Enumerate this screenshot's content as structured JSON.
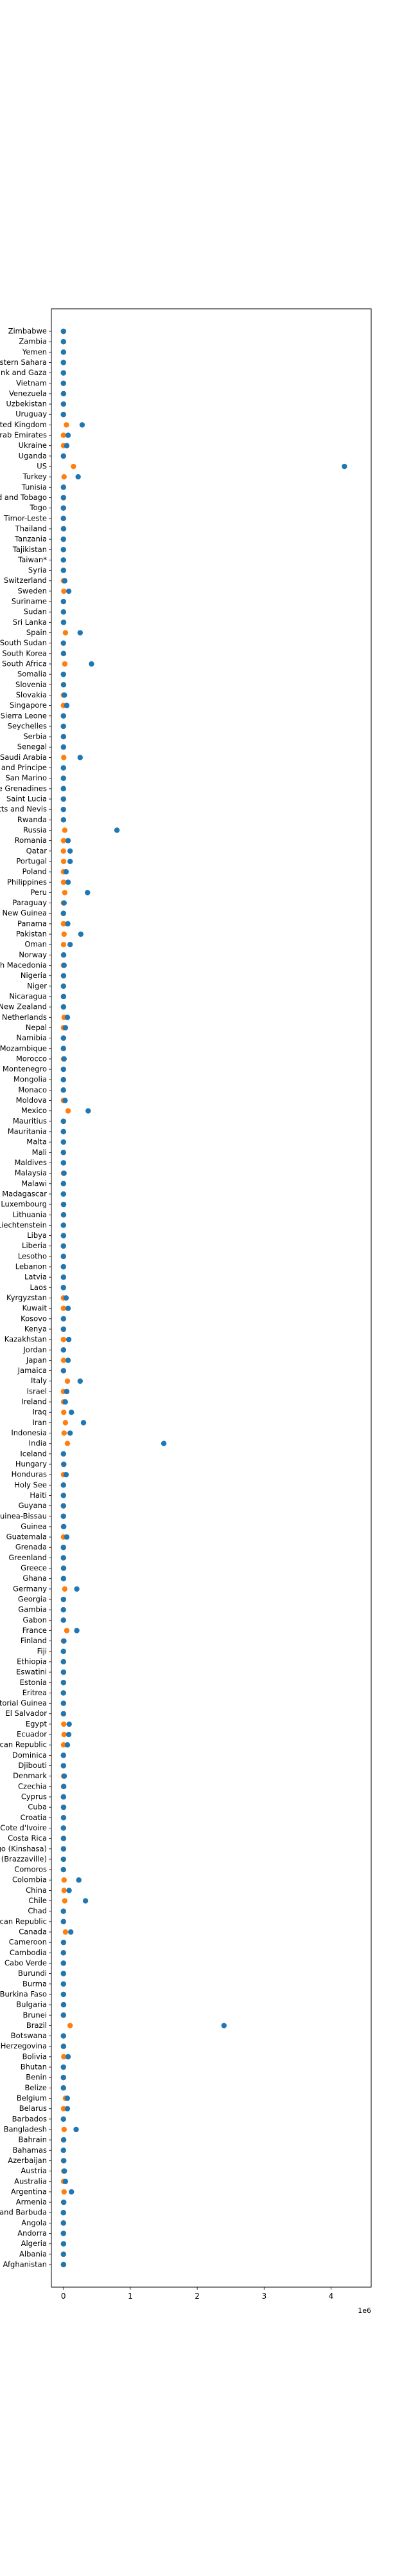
{
  "chart_data": {
    "type": "scatter",
    "title": "",
    "xlabel": "",
    "ylabel": "",
    "x_offset_label": "1e6",
    "x_scale": 1000000,
    "xlim": [
      -180000,
      4600000
    ],
    "x_ticks": [
      0,
      1000000,
      2000000,
      3000000,
      4000000
    ],
    "x_tick_labels": [
      "0",
      "1",
      "2",
      "3",
      "4"
    ],
    "grid": false,
    "legend": "none",
    "colors": {
      "series_a": "#1f77b4",
      "series_b": "#ff7f0e"
    },
    "categories": [
      "Afghanistan",
      "Albania",
      "Algeria",
      "Andorra",
      "Angola",
      "Antigua and Barbuda",
      "Armenia",
      "Argentina",
      "Australia",
      "Austria",
      "Azerbaijan",
      "Bahamas",
      "Bahrain",
      "Bangladesh",
      "Barbados",
      "Belarus",
      "Belgium",
      "Belize",
      "Benin",
      "Bhutan",
      "Bolivia",
      "Bosnia and Herzegovina",
      "Botswana",
      "Brazil",
      "Brunei",
      "Bulgaria",
      "Burkina Faso",
      "Burma",
      "Burundi",
      "Cabo Verde",
      "Cambodia",
      "Cameroon",
      "Canada",
      "Central African Republic",
      "Chad",
      "Chile",
      "China",
      "Colombia",
      "Comoros",
      "Congo (Brazzaville)",
      "Congo (Kinshasa)",
      "Costa Rica",
      "Cote d'Ivoire",
      "Croatia",
      "Cuba",
      "Cyprus",
      "Czechia",
      "Denmark",
      "Djibouti",
      "Dominica",
      "Dominican Republic",
      "Ecuador",
      "Egypt",
      "El Salvador",
      "Equatorial Guinea",
      "Eritrea",
      "Estonia",
      "Eswatini",
      "Ethiopia",
      "Fiji",
      "Finland",
      "France",
      "Gabon",
      "Gambia",
      "Georgia",
      "Germany",
      "Ghana",
      "Greece",
      "Greenland",
      "Grenada",
      "Guatemala",
      "Guinea",
      "Guinea-Bissau",
      "Guyana",
      "Haiti",
      "Holy See",
      "Honduras",
      "Hungary",
      "Iceland",
      "India",
      "Indonesia",
      "Iran",
      "Iraq",
      "Ireland",
      "Israel",
      "Italy",
      "Jamaica",
      "Japan",
      "Jordan",
      "Kazakhstan",
      "Kenya",
      "Kosovo",
      "Kuwait",
      "Kyrgyzstan",
      "Laos",
      "Latvia",
      "Lebanon",
      "Lesotho",
      "Liberia",
      "Libya",
      "Liechtenstein",
      "Lithuania",
      "Luxembourg",
      "Madagascar",
      "Malawi",
      "Malaysia",
      "Maldives",
      "Mali",
      "Malta",
      "Mauritania",
      "Mauritius",
      "Mexico",
      "Moldova",
      "Monaco",
      "Mongolia",
      "Montenegro",
      "Morocco",
      "Mozambique",
      "Namibia",
      "Nepal",
      "Netherlands",
      "New Zealand",
      "Nicaragua",
      "Niger",
      "Nigeria",
      "North Macedonia",
      "Norway",
      "Oman",
      "Pakistan",
      "Panama",
      "Papua New Guinea",
      "Paraguay",
      "Peru",
      "Philippines",
      "Poland",
      "Portugal",
      "Qatar",
      "Romania",
      "Russia",
      "Rwanda",
      "Saint Kitts and Nevis",
      "Saint Lucia",
      "Saint Vincent and the Grenadines",
      "San Marino",
      "Sao Tome and Principe",
      "Saudi Arabia",
      "Senegal",
      "Serbia",
      "Seychelles",
      "Sierra Leone",
      "Singapore",
      "Slovakia",
      "Slovenia",
      "Somalia",
      "South Africa",
      "South Korea",
      "South Sudan",
      "Spain",
      "Sri Lanka",
      "Sudan",
      "Suriname",
      "Sweden",
      "Switzerland",
      "Syria",
      "Taiwan*",
      "Tajikistan",
      "Tanzania",
      "Thailand",
      "Timor-Leste",
      "Togo",
      "Trinidad and Tobago",
      "Tunisia",
      "Turkey",
      "US",
      "Uganda",
      "Ukraine",
      "United Arab Emirates",
      "United Kingdom",
      "Uruguay",
      "Uzbekistan",
      "Venezuela",
      "Vietnam",
      "West Bank and Gaza",
      "Western Sahara",
      "Yemen",
      "Zambia",
      "Zimbabwe"
    ],
    "series": [
      {
        "values": [
          2000,
          1000,
          2000,
          100,
          300,
          100,
          5000,
          120000,
          30000,
          15000,
          5000,
          100,
          4000,
          190000,
          50,
          60000,
          58000,
          100,
          200,
          100,
          70000,
          2000,
          300,
          2400000,
          100,
          3000,
          1000,
          300,
          100,
          700,
          100,
          2000,
          110000,
          500,
          100,
          330000,
          85000,
          230000,
          50,
          1000,
          2000,
          2000,
          300,
          2500,
          2500,
          1000,
          5000,
          13000,
          800,
          20,
          60000,
          80000,
          86000,
          1000,
          1000,
          50,
          1000,
          1500,
          700,
          10,
          7000,
          200000,
          200,
          100,
          1000,
          200000,
          1000,
          3000,
          20,
          20,
          50000,
          5000,
          100,
          300,
          400,
          10,
          40000,
          6000,
          500,
          1500000,
          100000,
          300000,
          120000,
          28000,
          50000,
          250000,
          1000,
          70000,
          1000,
          80000,
          1000,
          1000,
          70000,
          40000,
          20,
          1000,
          500,
          200,
          100,
          1000,
          50,
          3000,
          3000,
          300,
          500,
          9000,
          1000,
          100,
          600,
          500,
          30,
          370000,
          25000,
          50,
          30,
          600,
          10000,
          200,
          900,
          30000,
          60000,
          1500,
          2000,
          1000,
          2000,
          10000,
          4000,
          100000,
          260000,
          65000,
          100,
          10000,
          360000,
          70000,
          40000,
          100000,
          100000,
          70000,
          800000,
          1500,
          50,
          1000,
          50,
          300,
          50,
          250000,
          1000,
          1000,
          100,
          100,
          50000,
          15000,
          3000,
          100,
          420000,
          2000,
          50,
          250000,
          3000,
          1000,
          1000,
          80000,
          20000,
          1000,
          20,
          50,
          50,
          3000,
          20,
          200,
          1000,
          1000,
          220000,
          4200000,
          100,
          50000,
          70000,
          280000,
          50,
          1000,
          2000,
          20,
          500,
          10,
          1000,
          1000,
          1000
        ]
      },
      {
        "values": [
          500,
          100,
          500,
          50,
          100,
          50,
          1000,
          10000,
          3000,
          5000,
          1000,
          50,
          1000,
          10000,
          50,
          2000,
          30000,
          50,
          100,
          50,
          5000,
          500,
          100,
          100000,
          50,
          500,
          200,
          100,
          50,
          100,
          50,
          500,
          30000,
          100,
          100,
          20000,
          10000,
          10000,
          50,
          100,
          200,
          500,
          100,
          500,
          500,
          200,
          1000,
          3000,
          100,
          10,
          2000,
          10000,
          5000,
          500,
          200,
          20,
          100,
          200,
          200,
          5,
          500,
          50000,
          100,
          50,
          500,
          20000,
          500,
          1000,
          10,
          10,
          1000,
          100,
          50,
          100,
          100,
          5,
          1000,
          3000,
          100,
          60000,
          10000,
          30000,
          5000,
          3000,
          1000,
          60000,
          500,
          2000,
          500,
          1000,
          500,
          500,
          500,
          500,
          10,
          200,
          200,
          50,
          100,
          200,
          20,
          1000,
          500,
          50,
          100,
          500,
          100,
          100,
          100,
          200,
          10,
          70000,
          500,
          10,
          10,
          200,
          1000,
          100,
          100,
          500,
          10000,
          100,
          200,
          100,
          500,
          500,
          1000,
          2000,
          10000,
          1000,
          50,
          500,
          20000,
          2000,
          1000,
          3000,
          100,
          2000,
          20000,
          100,
          10,
          50,
          10,
          100,
          10,
          5000,
          200,
          500,
          10,
          100,
          100,
          500,
          300,
          50,
          20000,
          500,
          10,
          30000,
          200,
          500,
          200,
          6000,
          2000,
          200,
          10,
          10,
          50,
          100,
          10,
          100,
          100,
          200,
          10000,
          150000,
          50,
          2000,
          500,
          45000,
          50,
          100,
          200,
          10,
          200,
          5,
          500,
          200,
          200
        ]
      }
    ]
  }
}
